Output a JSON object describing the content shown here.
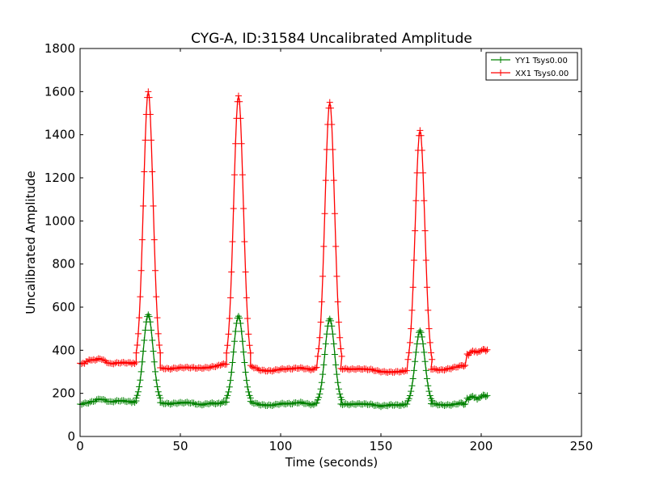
{
  "chart_data": {
    "type": "line",
    "title": "CYG-A, ID:31584 Uncalibrated Amplitude",
    "xlabel": "Time (seconds)",
    "ylabel": "Uncalibrated Amplitude",
    "xlim": [
      0,
      250
    ],
    "ylim": [
      0,
      1800
    ],
    "xticks": [
      0,
      50,
      100,
      150,
      200,
      250
    ],
    "yticks": [
      0,
      200,
      400,
      600,
      800,
      1000,
      1200,
      1400,
      1600,
      1800
    ],
    "grid": false,
    "legend_position": "top-right",
    "marker": "plus",
    "series": [
      {
        "name": "YY1 Tsys0.00",
        "color": "#008000",
        "baseline_segments": [
          {
            "x": [
              0,
              5,
              10,
              15,
              20,
              25,
              28
            ],
            "y": [
              150,
              162,
              178,
              158,
              162,
              160,
              165
            ]
          },
          {
            "x": [
              40,
              45,
              50,
              55,
              60,
              65,
              70,
              73
            ],
            "y": [
              158,
              150,
              152,
              155,
              150,
              158,
              152,
              160
            ]
          },
          {
            "x": [
              85,
              90,
              95,
              100,
              105,
              110,
              115,
              118
            ],
            "y": [
              158,
              150,
              148,
              152,
              148,
              155,
              150,
              155
            ]
          },
          {
            "x": [
              130,
              135,
              140,
              145,
              150,
              155,
              160,
              163
            ],
            "y": [
              150,
              145,
              148,
              150,
              145,
              148,
              142,
              150
            ]
          },
          {
            "x": [
              175,
              180,
              185,
              190,
              192
            ],
            "y": [
              155,
              150,
              148,
              152,
              150
            ]
          },
          {
            "x": [
              193,
              195,
              198,
              201,
              203
            ],
            "y": [
              175,
              182,
              178,
              188,
              190
            ]
          }
        ],
        "peaks": [
          {
            "x": 34,
            "value": 565
          },
          {
            "x": 79,
            "value": 558
          },
          {
            "x": 124.5,
            "value": 545
          },
          {
            "x": 169.5,
            "value": 490
          }
        ]
      },
      {
        "name": "XX1 Tsys0.00",
        "color": "#ff0000",
        "baseline_segments": [
          {
            "x": [
              0,
              3,
              6,
              10,
              15,
              20,
              25,
              28
            ],
            "y": [
              340,
              345,
              355,
              365,
              335,
              338,
              340,
              345
            ]
          },
          {
            "x": [
              40,
              45,
              50,
              55,
              60,
              65,
              70,
              73
            ],
            "y": [
              320,
              312,
              315,
              318,
              320,
              325,
              330,
              335
            ]
          },
          {
            "x": [
              85,
              90,
              95,
              100,
              105,
              110,
              115,
              118
            ],
            "y": [
              325,
              310,
              308,
              312,
              310,
              315,
              312,
              320
            ]
          },
          {
            "x": [
              130,
              135,
              140,
              145,
              150,
              155,
              160,
              163
            ],
            "y": [
              315,
              308,
              310,
              312,
              305,
              300,
              298,
              305
            ]
          },
          {
            "x": [
              175,
              180,
              185,
              190,
              192
            ],
            "y": [
              315,
              312,
              318,
              325,
              330
            ]
          },
          {
            "x": [
              193,
              195,
              198,
              201,
              203
            ],
            "y": [
              380,
              390,
              395,
              400,
              402
            ]
          }
        ],
        "peaks": [
          {
            "x": 34,
            "value": 1600
          },
          {
            "x": 79,
            "value": 1580
          },
          {
            "x": 124.5,
            "value": 1550
          },
          {
            "x": 169.5,
            "value": 1420
          }
        ]
      }
    ]
  }
}
